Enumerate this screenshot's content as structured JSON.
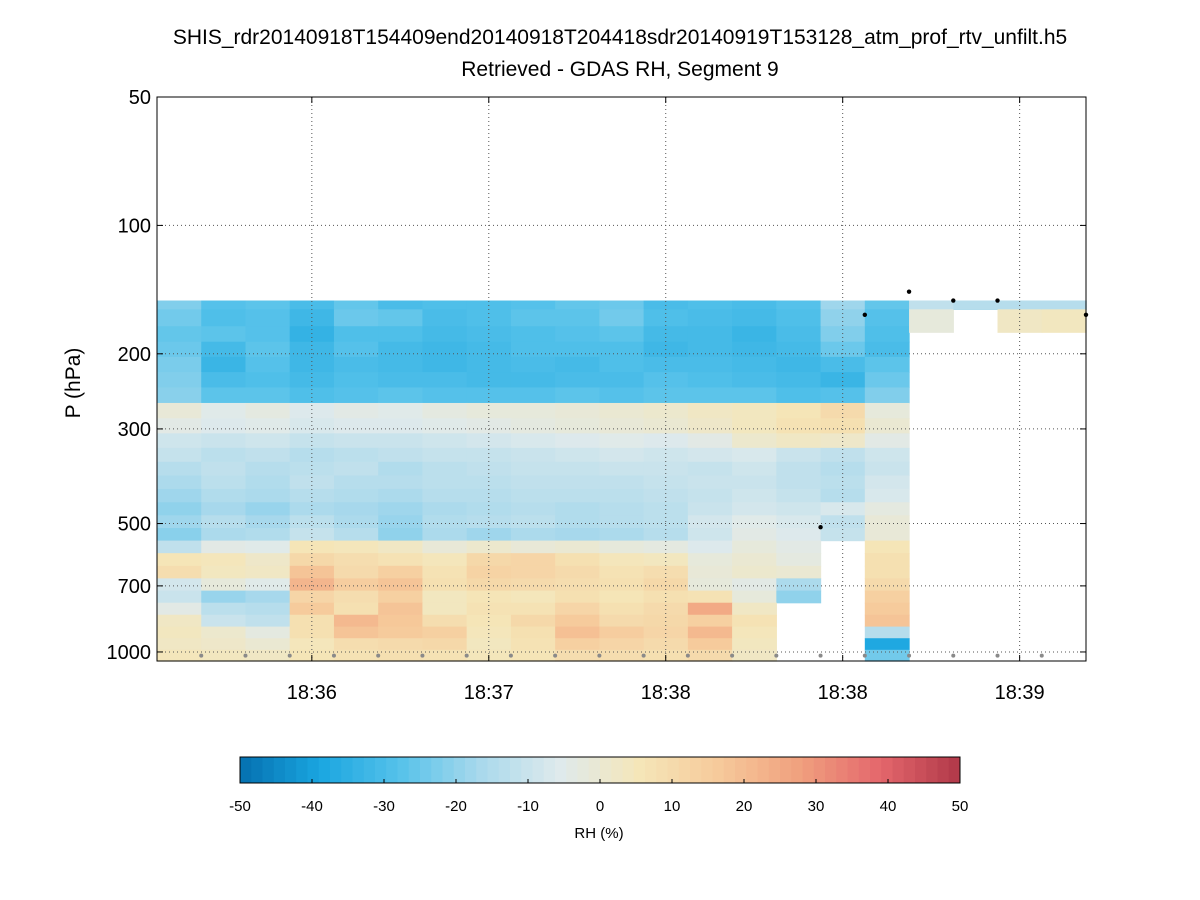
{
  "chart_data": {
    "type": "heatmap",
    "title": "SHIS_rdr20140918T154409end20140918T204418sdr20140919T153128_atm_prof_rtv_unfilt.h5",
    "subtitle": "Retrieved - GDAS RH, Segment 9",
    "ylabel": "P (hPa)",
    "y_scale": "log",
    "y_reversed": true,
    "ylim": [
      50,
      1050
    ],
    "yticks": [
      50,
      100,
      200,
      300,
      500,
      700,
      1000
    ],
    "ytick_labels": [
      "50",
      "100",
      "200",
      "300",
      "500",
      "700",
      "1000"
    ],
    "xtick_labels": [
      "18:36",
      "18:37",
      "18:38",
      "18:38",
      "18:39"
    ],
    "grid": true,
    "colorbar": {
      "label": "RH (%)",
      "range": [
        -50,
        50
      ],
      "ticks": [
        -50,
        -40,
        -30,
        -20,
        -10,
        0,
        10,
        20,
        30,
        40,
        50
      ],
      "tick_labels": [
        "-50",
        "-40",
        "-30",
        "-20",
        "-10",
        "0",
        "10",
        "20",
        "30",
        "40",
        "50"
      ],
      "colormap": [
        "#0570b0",
        "#1aa6e0",
        "#56c2ea",
        "#a9d9ec",
        "#dfeaec",
        "#f5e6b8",
        "#f6c99a",
        "#f0a07e",
        "#e4676c",
        "#b03848"
      ]
    },
    "profiles_count": 21,
    "pressure_levels": [
      150,
      165,
      180,
      195,
      212,
      230,
      250,
      272,
      295,
      320,
      345,
      372,
      400,
      430,
      462,
      495,
      530,
      567,
      607,
      650,
      695,
      742,
      792,
      845,
      900,
      958,
      1020
    ],
    "rh_difference": [
      [
        -22,
        -28,
        -27,
        -30,
        -26,
        -30,
        -29,
        -29,
        -28,
        -26,
        -25,
        -30,
        -29,
        -30,
        -28,
        -18,
        -26,
        -29,
        -26,
        -30,
        -27
      ],
      [
        -24,
        -29,
        -28,
        -32,
        -25,
        -26,
        -30,
        -29,
        -27,
        -27,
        -24,
        -29,
        -30,
        -31,
        -29,
        -20,
        -28,
        null,
        null,
        null,
        null
      ],
      [
        -26,
        -27,
        -28,
        -34,
        -29,
        -29,
        -31,
        -30,
        -29,
        -28,
        -27,
        -31,
        -31,
        -33,
        -30,
        -22,
        -29,
        null,
        null,
        null,
        null
      ],
      [
        -25,
        -31,
        -27,
        -32,
        -28,
        -31,
        -32,
        -31,
        -29,
        -29,
        -29,
        -32,
        -31,
        -32,
        -31,
        -25,
        -30,
        null,
        null,
        null,
        null
      ],
      [
        -23,
        -33,
        -28,
        -32,
        -30,
        -31,
        -32,
        -31,
        -30,
        -31,
        -29,
        -30,
        -30,
        -31,
        -32,
        -30,
        -27,
        null,
        null,
        null,
        null
      ],
      [
        -22,
        -30,
        -29,
        -31,
        -29,
        -30,
        -30,
        -31,
        -31,
        -30,
        -30,
        -28,
        -29,
        -30,
        -31,
        -33,
        -25,
        null,
        null,
        null,
        null
      ],
      [
        -21,
        -27,
        -27,
        -29,
        -28,
        -27,
        -28,
        -28,
        -28,
        -27,
        -28,
        -27,
        -27,
        -27,
        -29,
        -28,
        -22,
        null,
        null,
        null,
        null
      ],
      [
        -1,
        -5,
        -3,
        -6,
        -4,
        -5,
        -3,
        -2,
        -2,
        -1,
        0,
        1,
        3,
        4,
        6,
        10,
        -2,
        null,
        null,
        null,
        null
      ],
      [
        -4,
        -6,
        -5,
        -7,
        -6,
        -6,
        -5,
        -4,
        -3,
        -2,
        -1,
        0,
        2,
        4,
        7,
        8,
        0,
        null,
        null,
        null,
        null
      ],
      [
        -9,
        -10,
        -9,
        -11,
        -10,
        -10,
        -9,
        -8,
        -7,
        -6,
        -5,
        -6,
        -4,
        1,
        3,
        2,
        -4,
        null,
        null,
        null,
        null
      ],
      [
        -11,
        -13,
        -12,
        -14,
        -13,
        -12,
        -11,
        -11,
        -10,
        -9,
        -8,
        -9,
        -8,
        -7,
        -10,
        -12,
        -9,
        null,
        null,
        null,
        null
      ],
      [
        -14,
        -12,
        -14,
        -13,
        -12,
        -15,
        -13,
        -12,
        -11,
        -11,
        -10,
        -10,
        -11,
        -9,
        -12,
        -14,
        -10,
        null,
        null,
        null,
        null
      ],
      [
        -16,
        -13,
        -15,
        -12,
        -14,
        -14,
        -13,
        -13,
        -12,
        -12,
        -12,
        -11,
        -10,
        -10,
        -12,
        -13,
        -8,
        null,
        null,
        null,
        null
      ],
      [
        -18,
        -15,
        -16,
        -14,
        -15,
        -16,
        -14,
        -14,
        -13,
        -13,
        -13,
        -12,
        -11,
        -9,
        -11,
        -14,
        -7,
        null,
        null,
        null,
        null
      ],
      [
        -20,
        -17,
        -19,
        -16,
        -17,
        -18,
        -16,
        -15,
        -14,
        -15,
        -14,
        -13,
        -10,
        -8,
        -9,
        -7,
        -3,
        null,
        null,
        null,
        null
      ],
      [
        -18,
        -14,
        -17,
        -13,
        -16,
        -19,
        -15,
        -14,
        -13,
        -15,
        -14,
        -13,
        -8,
        -5,
        -7,
        -12,
        -1,
        null,
        null,
        null,
        null
      ],
      [
        -21,
        -16,
        -15,
        -11,
        -14,
        -20,
        -16,
        -18,
        -16,
        -17,
        -16,
        -14,
        -9,
        -4,
        -6,
        -11,
        -1,
        null,
        null,
        null,
        null
      ],
      [
        -12,
        -4,
        -5,
        6,
        5,
        3,
        -1,
        1,
        -1,
        0,
        -2,
        -3,
        -6,
        -2,
        -4,
        null,
        6,
        null,
        null,
        null,
        null
      ],
      [
        6,
        5,
        2,
        11,
        9,
        7,
        5,
        11,
        12,
        8,
        5,
        4,
        -2,
        0,
        -3,
        null,
        8,
        null,
        null,
        null,
        null
      ],
      [
        9,
        4,
        3,
        18,
        10,
        14,
        7,
        13,
        12,
        10,
        7,
        9,
        -1,
        1,
        0,
        null,
        8,
        null,
        null,
        null,
        null
      ],
      [
        -8,
        -2,
        -5,
        22,
        15,
        18,
        8,
        11,
        10,
        9,
        8,
        11,
        -2,
        -4,
        -16,
        null,
        10,
        null,
        null,
        null,
        null
      ],
      [
        -10,
        -19,
        -17,
        12,
        9,
        14,
        4,
        6,
        5,
        8,
        6,
        8,
        7,
        -2,
        -20,
        null,
        14,
        null,
        null,
        null,
        null
      ],
      [
        -4,
        -13,
        -14,
        16,
        8,
        18,
        4,
        7,
        7,
        12,
        8,
        10,
        25,
        3,
        null,
        null,
        16,
        null,
        null,
        null,
        null
      ],
      [
        3,
        -10,
        -12,
        8,
        21,
        17,
        9,
        6,
        11,
        16,
        10,
        11,
        14,
        7,
        null,
        null,
        18,
        null,
        null,
        null,
        null
      ],
      [
        4,
        1,
        -3,
        8,
        18,
        16,
        14,
        5,
        8,
        19,
        15,
        12,
        21,
        5,
        null,
        null,
        -14,
        null,
        null,
        null,
        null
      ],
      [
        3,
        2,
        0,
        5,
        9,
        10,
        11,
        4,
        7,
        14,
        12,
        10,
        16,
        4,
        null,
        null,
        -38,
        null,
        null,
        null,
        null
      ],
      [
        5,
        4,
        3,
        6,
        7,
        8,
        7,
        5,
        6,
        9,
        9,
        8,
        10,
        3,
        null,
        null,
        -24,
        null,
        null,
        null,
        null
      ]
    ],
    "upper_segment_rh": [
      {
        "profile": 17,
        "values": [
          -12,
          -2
        ]
      },
      {
        "profile": 18,
        "values": [
          -14,
          null
        ]
      },
      {
        "profile": 19,
        "values": [
          -14,
          3
        ]
      },
      {
        "profile": 20,
        "values": [
          -14,
          4
        ]
      }
    ],
    "upper_segment_levels": [
      150,
      165
    ],
    "surface_markers": {
      "top_profiles": [
        16,
        17,
        18,
        19,
        20
      ],
      "top_pressures": [
        162,
        143,
        150,
        150,
        162
      ],
      "mid_marker": {
        "profile": 14,
        "pressure": 510
      }
    }
  }
}
